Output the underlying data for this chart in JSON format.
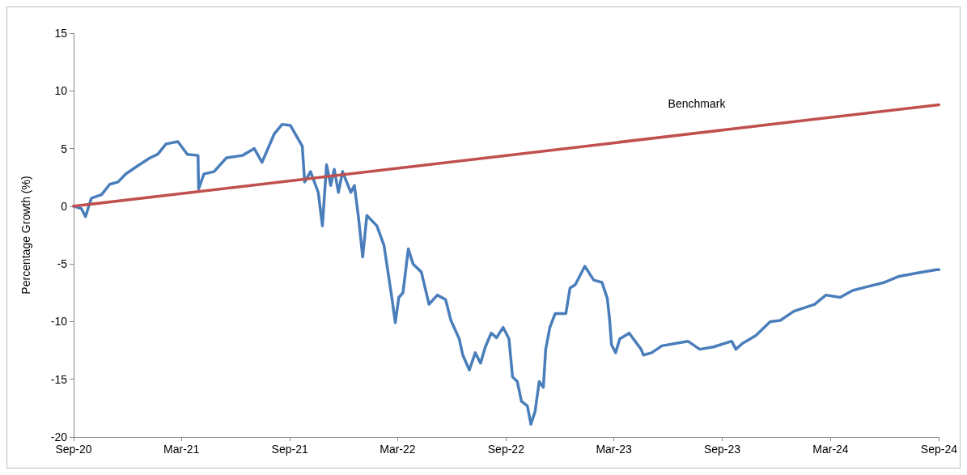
{
  "chart_data": {
    "type": "line",
    "ylabel": "Percentage Growth (%)",
    "xlim": [
      "2020-09-30",
      "2024-09-30"
    ],
    "xticks": [
      {
        "value": "2020-09-30",
        "label": "Sep-20"
      },
      {
        "value": "2021-03-31",
        "label": "Mar-21"
      },
      {
        "value": "2021-09-30",
        "label": "Sep-21"
      },
      {
        "value": "2022-03-31",
        "label": "Mar-22"
      },
      {
        "value": "2022-09-30",
        "label": "Sep-22"
      },
      {
        "value": "2023-03-31",
        "label": "Mar-23"
      },
      {
        "value": "2023-09-30",
        "label": "Sep-23"
      },
      {
        "value": "2024-03-31",
        "label": "Mar-24"
      },
      {
        "value": "2024-09-30",
        "label": "Sep-24"
      }
    ],
    "ylim": [
      -20,
      15
    ],
    "yticks": [
      -20,
      -15,
      -10,
      -5,
      0,
      5,
      10,
      15
    ],
    "grid": false,
    "legend": false,
    "marker": "none",
    "line_style": "solid",
    "series": [
      {
        "color": "#4a7ebb",
        "x": [
          "2020-09-30",
          "2020-10-13",
          "2020-10-20",
          "2020-10-30",
          "2020-11-16",
          "2020-11-30",
          "2020-12-14",
          "2020-12-27",
          "2021-01-16",
          "2021-02-06",
          "2021-02-19",
          "2021-03-05",
          "2021-03-25",
          "2021-04-10",
          "2021-04-28",
          "2021-04-29",
          "2021-05-08",
          "2021-05-25",
          "2021-06-15",
          "2021-07-12",
          "2021-08-01",
          "2021-08-14",
          "2021-09-04",
          "2021-09-17",
          "2021-10-01",
          "2021-10-21",
          "2021-10-25",
          "2021-11-04",
          "2021-11-17",
          "2021-11-24",
          "2021-12-01",
          "2021-12-08",
          "2021-12-14",
          "2021-12-21",
          "2021-12-28",
          "2022-01-11",
          "2022-01-17",
          "2022-01-24",
          "2022-01-31",
          "2022-02-07",
          "2022-02-24",
          "2022-03-08",
          "2022-03-22",
          "2022-03-27",
          "2022-04-02",
          "2022-04-09",
          "2022-04-18",
          "2022-04-26",
          "2022-05-10",
          "2022-05-23",
          "2022-06-06",
          "2022-06-20",
          "2022-06-29",
          "2022-07-13",
          "2022-07-19",
          "2022-07-30",
          "2022-08-09",
          "2022-08-18",
          "2022-08-26",
          "2022-09-05",
          "2022-09-14",
          "2022-09-25",
          "2022-10-05",
          "2022-10-11",
          "2022-10-19",
          "2022-10-26",
          "2022-11-05",
          "2022-11-11",
          "2022-11-18",
          "2022-11-25",
          "2022-12-02",
          "2022-12-06",
          "2022-12-13",
          "2022-12-22",
          "2023-01-09",
          "2023-01-16",
          "2023-01-25",
          "2023-02-10",
          "2023-02-25",
          "2023-03-11",
          "2023-03-20",
          "2023-03-24",
          "2023-03-27",
          "2023-04-03",
          "2023-04-10",
          "2023-04-26",
          "2023-05-16",
          "2023-05-20",
          "2023-06-03",
          "2023-06-20",
          "2023-08-03",
          "2023-08-23",
          "2023-09-15",
          "2023-10-16",
          "2023-10-23",
          "2023-11-03",
          "2023-11-26",
          "2023-12-20",
          "2024-01-06",
          "2024-01-29",
          "2024-03-04",
          "2024-03-23",
          "2024-04-16",
          "2024-05-07",
          "2024-05-30",
          "2024-06-30",
          "2024-07-23",
          "2024-08-23",
          "2024-09-26",
          "2024-09-30"
        ],
        "values": [
          0,
          -0.2,
          -0.9,
          0.7,
          1.0,
          1.9,
          2.1,
          2.8,
          3.5,
          4.2,
          4.5,
          5.4,
          5.6,
          4.5,
          4.4,
          1.5,
          2.8,
          3.0,
          4.2,
          4.4,
          5.0,
          3.8,
          6.3,
          7.1,
          7.0,
          5.2,
          2.1,
          3.0,
          1.2,
          -1.7,
          3.6,
          1.8,
          3.2,
          1.2,
          3.0,
          1.2,
          1.8,
          -1.0,
          -4.4,
          -0.8,
          -1.7,
          -3.4,
          -8.2,
          -10.1,
          -7.9,
          -7.5,
          -3.7,
          -5.0,
          -5.7,
          -8.5,
          -7.7,
          -8.1,
          -9.9,
          -11.5,
          -12.9,
          -14.2,
          -12.7,
          -13.6,
          -12.2,
          -11.0,
          -11.4,
          -10.5,
          -11.5,
          -14.8,
          -15.2,
          -16.9,
          -17.3,
          -18.9,
          -17.8,
          -15.2,
          -15.7,
          -12.4,
          -10.5,
          -9.3,
          -9.3,
          -7.1,
          -6.8,
          -5.2,
          -6.4,
          -6.6,
          -8.0,
          -9.9,
          -12.0,
          -12.7,
          -11.5,
          -11.0,
          -12.4,
          -12.9,
          -12.7,
          -12.1,
          -11.7,
          -12.4,
          -12.2,
          -11.7,
          -12.4,
          -11.9,
          -11.2,
          -10.0,
          -9.9,
          -9.1,
          -8.5,
          -7.7,
          -7.9,
          -7.3,
          -7.0,
          -6.6,
          -6.1,
          -5.8,
          -5.5,
          -5.5
        ]
      },
      {
        "name": "Benchmark",
        "color": "#c0504d",
        "x": [
          "2020-09-30",
          "2024-09-30"
        ],
        "values": [
          0,
          8.8
        ]
      }
    ]
  }
}
